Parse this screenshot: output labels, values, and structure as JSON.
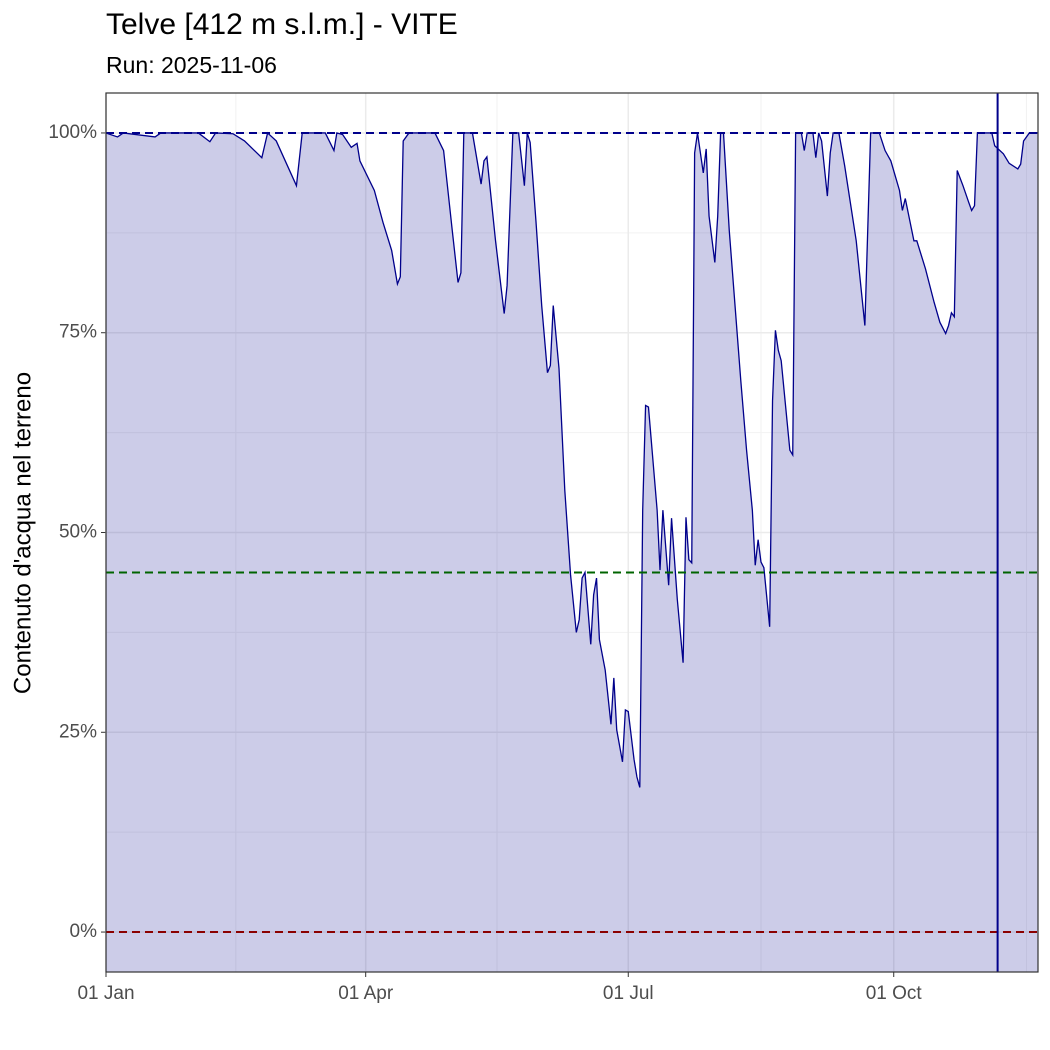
{
  "chart_data": {
    "type": "area",
    "title": "Telve [412 m s.l.m.] - VITE",
    "subtitle": "Run: 2025-11-06",
    "y_label": "Contenuto d'acqua nel terreno",
    "x": [
      "01-01",
      "01-05",
      "01-07",
      "01-18",
      "01-20",
      "02-02",
      "02-06",
      "02-08",
      "02-14",
      "02-18",
      "02-24",
      "02-26",
      "03-01",
      "03-08",
      "03-10",
      "03-18",
      "03-21",
      "03-22",
      "03-24",
      "03-27",
      "03-29",
      "03-30",
      "04-04",
      "04-07",
      "04-10",
      "04-12",
      "04-13",
      "04-14",
      "04-16",
      "04-25",
      "04-28",
      "05-01",
      "05-03",
      "05-04",
      "05-05",
      "05-08",
      "05-11",
      "05-12",
      "05-13",
      "05-16",
      "05-19",
      "05-20",
      "05-22",
      "05-24",
      "05-26",
      "05-27",
      "05-28",
      "05-30",
      "06-01",
      "06-03",
      "06-04",
      "06-05",
      "06-07",
      "06-09",
      "06-11",
      "06-13",
      "06-14",
      "06-15",
      "06-16",
      "06-18",
      "06-19",
      "06-20",
      "06-21",
      "06-23",
      "06-25",
      "06-26",
      "06-27",
      "06-29",
      "06-30",
      "07-01",
      "07-03",
      "07-04",
      "07-05",
      "07-06",
      "07-07",
      "07-08",
      "07-11",
      "07-12",
      "07-13",
      "07-15",
      "07-16",
      "07-18",
      "07-20",
      "07-21",
      "07-22",
      "07-23",
      "07-24",
      "07-25",
      "07-27",
      "07-28",
      "07-29",
      "07-31",
      "08-01",
      "08-02",
      "08-03",
      "08-05",
      "08-09",
      "08-11",
      "08-13",
      "08-14",
      "08-15",
      "08-16",
      "08-17",
      "08-19",
      "08-20",
      "08-21",
      "08-22",
      "08-23",
      "08-26",
      "08-27",
      "08-28",
      "08-30",
      "08-31",
      "09-01",
      "09-03",
      "09-04",
      "09-05",
      "09-06",
      "09-08",
      "09-09",
      "09-10",
      "09-12",
      "09-14",
      "09-18",
      "09-21",
      "09-23",
      "09-26",
      "09-28",
      "09-30",
      "10-03",
      "10-04",
      "10-05",
      "10-08",
      "10-09",
      "10-12",
      "10-15",
      "10-17",
      "10-19",
      "10-20",
      "10-21",
      "10-22",
      "10-23",
      "10-25",
      "10-27",
      "10-28",
      "10-29",
      "10-30",
      "11-04",
      "11-05",
      "11-08",
      "11-10",
      "11-13",
      "11-14",
      "11-15",
      "11-17",
      "11-20"
    ],
    "series": [
      {
        "color": "#00008b",
        "values": [
          100,
          99.5,
          100,
          99.5,
          100,
          100,
          98.9,
          100,
          99.9,
          99,
          96.9,
          100,
          99,
          93.4,
          100,
          100,
          97.8,
          100,
          99.8,
          98.2,
          98.7,
          96.5,
          92.8,
          88.8,
          85.3,
          81.1,
          82,
          99,
          100,
          100,
          97.8,
          87.8,
          81.3,
          82.5,
          100,
          100,
          93.6,
          96.5,
          97,
          86.5,
          77.4,
          80.9,
          100,
          100,
          93.4,
          100,
          98.8,
          89,
          78.4,
          70,
          70.9,
          78.4,
          70.5,
          55.3,
          44.7,
          37.5,
          39.1,
          44.3,
          45,
          36,
          42.2,
          44.3,
          36.6,
          32.8,
          26,
          31.8,
          25.3,
          21.3,
          27.8,
          27.6,
          21.6,
          19.4,
          18.1,
          52.8,
          65.9,
          65.7,
          52.8,
          45.3,
          52.8,
          43.4,
          51.8,
          41.6,
          33.7,
          51.9,
          46.6,
          46.2,
          97.5,
          100,
          95,
          98,
          89.6,
          83.8,
          89.6,
          100,
          100,
          87.8,
          69,
          60.3,
          52.8,
          45.9,
          49.1,
          46.3,
          45.6,
          38.2,
          66.5,
          75.3,
          72.8,
          71.5,
          60.3,
          59.7,
          100,
          100,
          97.8,
          100,
          100,
          96.9,
          100,
          99,
          92.1,
          97.5,
          100,
          100,
          95.9,
          86.5,
          75.9,
          100,
          100,
          97.8,
          96.5,
          92.8,
          90.3,
          91.8,
          86.5,
          86.5,
          83,
          78.8,
          76.3,
          74.9,
          75.9,
          77.5,
          77,
          95.3,
          93.4,
          91.3,
          90.3,
          90.9,
          100,
          100,
          98.4,
          97.4,
          96.2,
          95.5,
          96.1,
          99,
          100,
          100
        ]
      }
    ],
    "xlim": [
      "01-01",
      "11-20"
    ],
    "xticks": [
      {
        "value": "01-01",
        "label": "01 Jan"
      },
      {
        "value": "04-01",
        "label": "01 Apr"
      },
      {
        "value": "07-01",
        "label": "01 Jul"
      },
      {
        "value": "10-01",
        "label": "01 Oct"
      }
    ],
    "ylim": [
      -5,
      105
    ],
    "yticks": [
      {
        "value": 0,
        "label": "0%"
      },
      {
        "value": 25,
        "label": "25%"
      },
      {
        "value": 50,
        "label": "50%"
      },
      {
        "value": 75,
        "label": "75%"
      },
      {
        "value": 100,
        "label": "100%"
      }
    ],
    "hlines": [
      {
        "value": 100,
        "color": "#00008b"
      },
      {
        "value": 45,
        "color": "#006400"
      },
      {
        "value": 0,
        "color": "#8b0000"
      }
    ],
    "vline": {
      "value": "11-06",
      "color": "#00008b"
    },
    "grid": true
  }
}
